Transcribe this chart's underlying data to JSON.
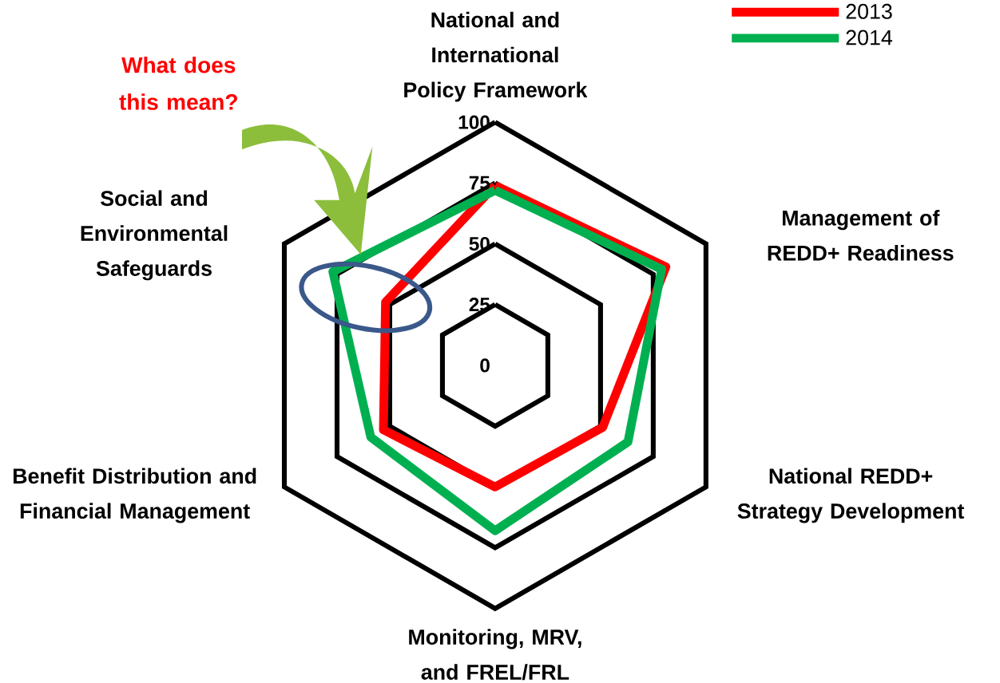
{
  "chart_data": {
    "type": "radar",
    "categories": [
      "National and International Policy Framework",
      "Management of REDD+ Readiness",
      "National REDD+ Strategy Development",
      "Monitoring, MRV, and FREL/FRL",
      "Benefit Distribution and Financial Management",
      "Social and Environmental Safeguards"
    ],
    "series": [
      {
        "name": "2013",
        "color": "#ff0000",
        "values": [
          74,
          81,
          51,
          50,
          53,
          52
        ]
      },
      {
        "name": "2014",
        "color": "#00b050",
        "values": [
          72,
          79,
          63,
          68,
          59,
          77
        ]
      }
    ],
    "ylim": [
      0,
      100
    ],
    "yticks": [
      0,
      25,
      50,
      75,
      100
    ],
    "grid": true,
    "legend": "top right",
    "annotations": [
      "What does this mean?"
    ]
  }
}
